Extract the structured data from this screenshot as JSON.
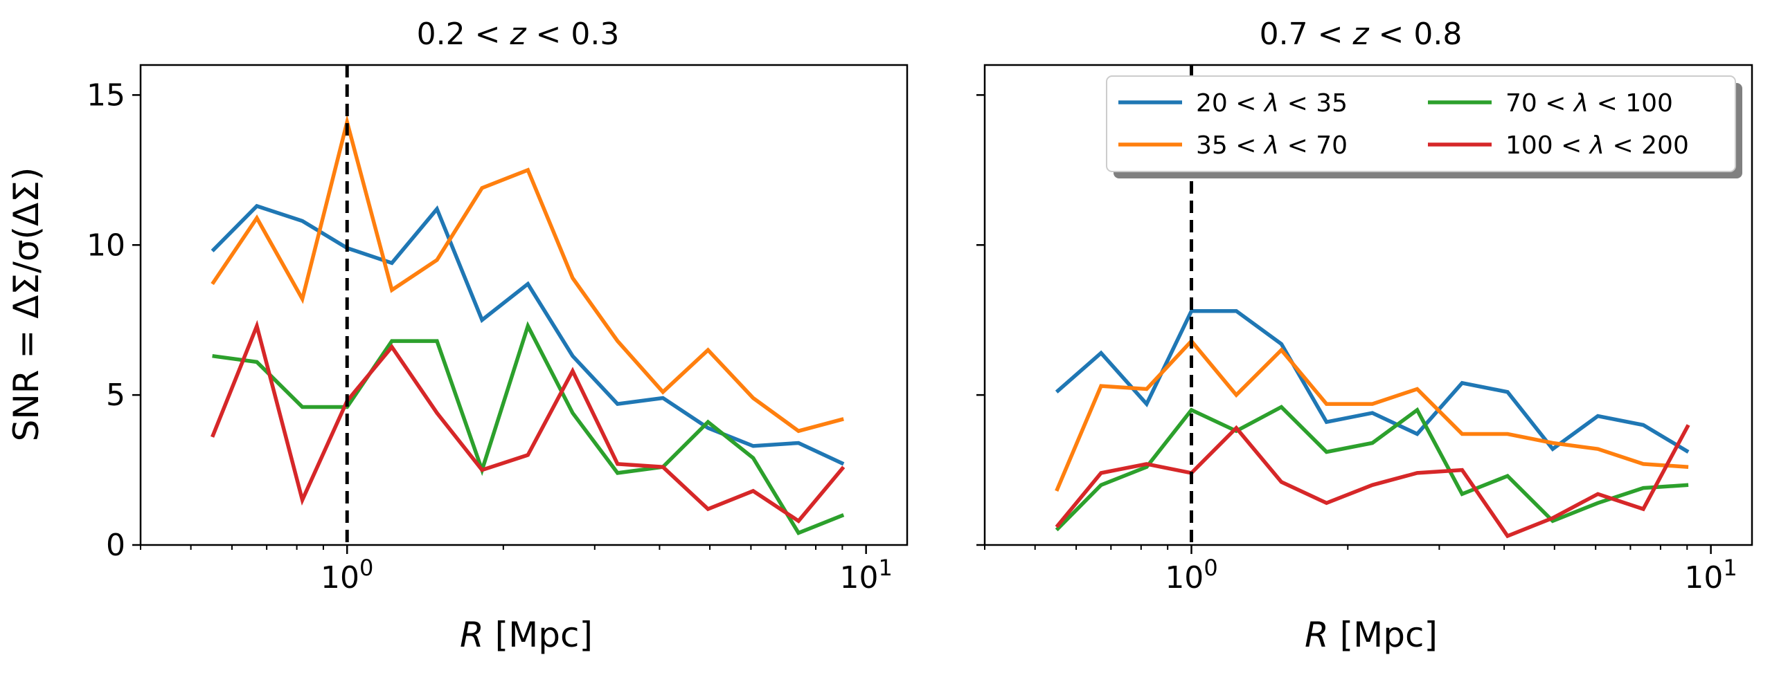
{
  "figure": {
    "ylabel": "SNR = ΔΣ/σ(ΔΣ)",
    "xlabel_var": "R",
    "xlabel_unit": " [Mpc]",
    "colors": {
      "20<l<35": "#1f77b4",
      "35<l<70": "#ff7f0e",
      "70<l<100": "#2ca02c",
      "100<l<200": "#d62728"
    },
    "legend": [
      {
        "a": "20 < ",
        "sym": "λ",
        "b": " < 35",
        "color": "#1f77b4"
      },
      {
        "a": "35 < ",
        "sym": "λ",
        "b": " < 70",
        "color": "#ff7f0e"
      },
      {
        "a": "70 < ",
        "sym": "λ",
        "b": " < 100",
        "color": "#2ca02c"
      },
      {
        "a": "100 < ",
        "sym": "λ",
        "b": " < 200",
        "color": "#d62728"
      }
    ],
    "legend_location": "upper right of second panel"
  },
  "chart_data": [
    {
      "type": "line",
      "title_a": "0.2  < ",
      "title_z": "z",
      "title_b": " <  0.3",
      "xlabel": "R [Mpc]",
      "ylabel": "SNR = ΔΣ/σ(ΔΣ)",
      "xscale": "log",
      "xlim": [
        0.4,
        12
      ],
      "ylim": [
        0,
        16
      ],
      "yticks": [
        "0",
        "5",
        "10",
        "15"
      ],
      "xticks_major": [
        1,
        10
      ],
      "vline": 1.0,
      "x": [
        0.55,
        0.67,
        0.82,
        1.0,
        1.22,
        1.49,
        1.82,
        2.23,
        2.72,
        3.32,
        4.06,
        4.96,
        6.06,
        7.41,
        9.05
      ],
      "series": [
        {
          "name": "20 < λ < 35",
          "color": "#1f77b4",
          "values": [
            9.8,
            11.3,
            10.8,
            9.9,
            9.4,
            11.2,
            7.5,
            8.7,
            6.3,
            4.7,
            4.9,
            3.9,
            3.3,
            3.4,
            2.7
          ]
        },
        {
          "name": "35 < λ < 70",
          "color": "#ff7f0e",
          "values": [
            8.7,
            10.9,
            8.2,
            14.1,
            8.5,
            9.5,
            11.9,
            12.5,
            8.9,
            6.8,
            5.1,
            6.5,
            4.9,
            3.8,
            4.2
          ]
        },
        {
          "name": "70 < λ < 100",
          "color": "#2ca02c",
          "values": [
            6.3,
            6.1,
            4.6,
            4.6,
            6.8,
            6.8,
            2.5,
            7.3,
            4.4,
            2.4,
            2.6,
            4.1,
            2.9,
            0.4,
            1.0
          ]
        },
        {
          "name": "100 < λ < 200",
          "color": "#d62728",
          "values": [
            3.6,
            7.3,
            1.5,
            4.8,
            6.6,
            4.4,
            2.5,
            3.0,
            5.8,
            2.7,
            2.6,
            1.2,
            1.8,
            0.8,
            2.6
          ]
        }
      ]
    },
    {
      "type": "line",
      "title_a": "0.7  < ",
      "title_z": "z",
      "title_b": " <  0.8",
      "xlabel": "R [Mpc]",
      "ylabel": "",
      "xscale": "log",
      "xlim": [
        0.4,
        12
      ],
      "ylim": [
        0,
        16
      ],
      "yticks": [
        "",
        "",
        "",
        ""
      ],
      "xticks_major": [
        1,
        10
      ],
      "vline": 1.0,
      "x": [
        0.55,
        0.67,
        0.82,
        1.0,
        1.22,
        1.49,
        1.82,
        2.23,
        2.72,
        3.32,
        4.06,
        4.96,
        6.06,
        7.41,
        9.05
      ],
      "series": [
        {
          "name": "20 < λ < 35",
          "color": "#1f77b4",
          "values": [
            5.1,
            6.4,
            4.7,
            7.8,
            7.8,
            6.7,
            4.1,
            4.4,
            3.7,
            5.4,
            5.1,
            3.2,
            4.3,
            4.0,
            3.1
          ]
        },
        {
          "name": "35 < λ < 70",
          "color": "#ff7f0e",
          "values": [
            1.8,
            5.3,
            5.2,
            6.8,
            5.0,
            6.5,
            4.7,
            4.7,
            5.2,
            3.7,
            3.7,
            3.4,
            3.2,
            2.7,
            2.6
          ]
        },
        {
          "name": "70 < λ < 100",
          "color": "#2ca02c",
          "values": [
            0.5,
            2.0,
            2.6,
            4.5,
            3.8,
            4.6,
            3.1,
            3.4,
            4.5,
            1.7,
            2.3,
            0.8,
            1.4,
            1.9,
            2.0
          ]
        },
        {
          "name": "100 < λ < 200",
          "color": "#d62728",
          "values": [
            0.6,
            2.4,
            2.7,
            2.4,
            3.9,
            2.1,
            1.4,
            2.0,
            2.4,
            2.5,
            0.3,
            0.9,
            1.7,
            1.2,
            4.0
          ]
        }
      ]
    }
  ]
}
